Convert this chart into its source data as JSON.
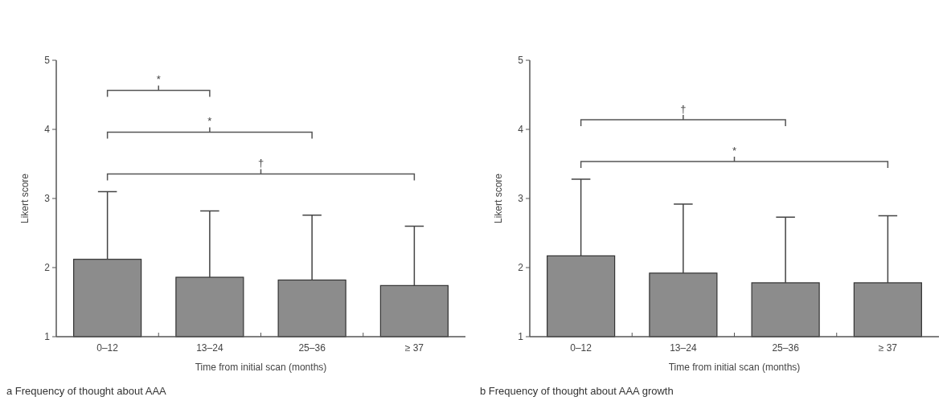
{
  "chart_data": [
    {
      "type": "bar",
      "title": "a Frequency of thought about AAA",
      "xlabel": "Time from initial scan (months)",
      "ylabel": "Likert score",
      "categories": [
        "0–12",
        "13–24",
        "25–36",
        "≥ 37"
      ],
      "values": [
        2.12,
        1.86,
        1.82,
        1.74
      ],
      "color": "#8c8c8c",
      "errors": [
        [
          2.12,
          3.1
        ],
        [
          1.86,
          2.82
        ],
        [
          1.82,
          2.76
        ],
        [
          1.74,
          2.6
        ]
      ],
      "ylim": [
        1,
        5
      ],
      "yticks": [
        1,
        2,
        3,
        4,
        5
      ],
      "annotations": [
        "*",
        "*",
        "†"
      ]
    },
    {
      "type": "bar",
      "title": "b Frequency of thought about AAA growth",
      "xlabel": "Time from initial scan (months)",
      "ylabel": "Likert score",
      "categories": [
        "0–12",
        "13–24",
        "25–36",
        "≥ 37"
      ],
      "values": [
        2.17,
        1.92,
        1.78,
        1.78
      ],
      "color": "#8c8c8c",
      "errors": [
        [
          2.17,
          3.28
        ],
        [
          1.92,
          2.92
        ],
        [
          1.78,
          2.73
        ],
        [
          1.78,
          2.75
        ]
      ],
      "ylim": [
        1,
        5
      ],
      "yticks": [
        1,
        2,
        3,
        4,
        5
      ],
      "annotations": [
        "†",
        "*"
      ]
    }
  ]
}
